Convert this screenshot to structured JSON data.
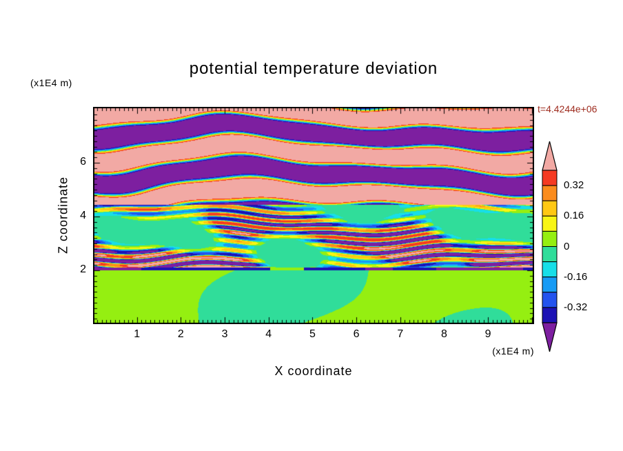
{
  "chart_data": {
    "type": "heatmap",
    "title": "potential temperature deviation",
    "xlabel": "X coordinate",
    "ylabel": "Z coordinate",
    "x_unit_label": "(x1E4 m)",
    "y_unit_label": "(x1E4 m)",
    "time_label": "t=4.4244e+06",
    "time_label_color": "#9e2b1e",
    "x_range": [
      0,
      10.05
    ],
    "z_range": [
      0,
      8.08
    ],
    "x_ticks": [
      "1",
      "2",
      "3",
      "4",
      "5",
      "6",
      "7",
      "8",
      "9"
    ],
    "z_ticks": [
      "2",
      "4",
      "6"
    ],
    "colorbar": {
      "levels": [
        -0.4,
        -0.32,
        -0.24,
        -0.16,
        -0.08,
        0,
        0.08,
        0.16,
        0.24,
        0.32,
        0.4
      ],
      "tick_labels": [
        "0.32",
        "0.16",
        "0",
        "-0.16",
        "-0.32"
      ],
      "band_colors_ascending": [
        "#1c12b4",
        "#2353ee",
        "#169bf5",
        "#17dfe8",
        "#30dd9a",
        "#95ef11",
        "#f8f515",
        "#ffc814",
        "#fb8c1d",
        "#f53a22"
      ],
      "below_color": "#7d1fa0",
      "above_color": "#f2a9a4"
    },
    "field_regions": [
      {
        "z_range": [
          0,
          2
        ],
        "description": "smooth chartreuse convective layer with spring-green patches, sharp top edge at z=2"
      },
      {
        "z_range": [
          2,
          4.45
        ],
        "description": "dense thin intermittent horizontal streaks (red/orange/yellow/navy) over green background"
      },
      {
        "z_range": [
          4.45,
          8.08
        ],
        "description": "alternating thick wavy pink (positive) and purple (negative) layers with rainbow fringes"
      }
    ]
  }
}
